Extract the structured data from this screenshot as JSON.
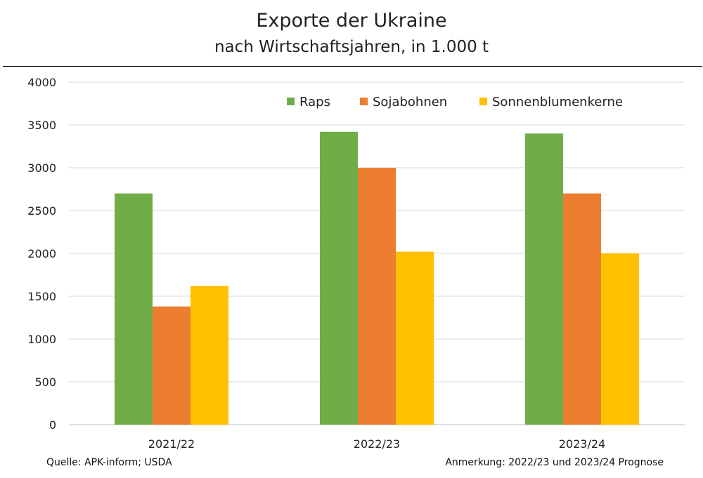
{
  "header": {
    "title": "Exporte der Ukraine",
    "subtitle": "nach Wirtschaftsjahren, in 1.000 t"
  },
  "footer": {
    "source": "Quelle: APK-inform; USDA",
    "note": "Anmerkung: 2022/23 und 2023/24 Prognose"
  },
  "chart_data": {
    "type": "bar",
    "title": "Exporte der Ukraine",
    "subtitle": "nach Wirtschaftsjahren, in 1.000 t",
    "categories": [
      "2021/22",
      "2022/23",
      "2023/24"
    ],
    "series": [
      {
        "name": "Raps",
        "color": "#70ad47",
        "values": [
          2700,
          3420,
          3400
        ]
      },
      {
        "name": "Sojabohnen",
        "color": "#ed7d31",
        "values": [
          1380,
          3000,
          2700
        ]
      },
      {
        "name": "Sonnenblumenkerne",
        "color": "#ffc000",
        "values": [
          1620,
          2020,
          2000
        ]
      }
    ],
    "ylim": [
      0,
      4000
    ],
    "yticks": [
      0,
      500,
      1000,
      1500,
      2000,
      2500,
      3000,
      3500,
      4000
    ],
    "grid": true,
    "legend": "top-right"
  }
}
